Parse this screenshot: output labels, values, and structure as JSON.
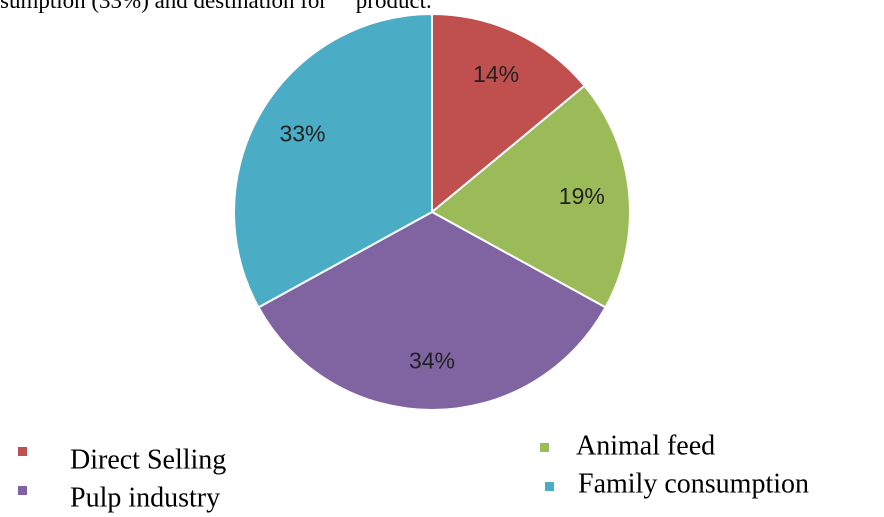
{
  "chart_data": {
    "type": "pie",
    "title": "sumption (33%) and destination for     product.",
    "categories": [
      "Direct Selling",
      "Animal feed",
      "Pulp industry",
      "Family consumption"
    ],
    "values": [
      14,
      19,
      34,
      33
    ],
    "value_labels": [
      "14%",
      "19%",
      "34%",
      "33%"
    ],
    "colors": [
      "#c0504d",
      "#9bbb59",
      "#8064a2",
      "#4bacc6"
    ]
  }
}
